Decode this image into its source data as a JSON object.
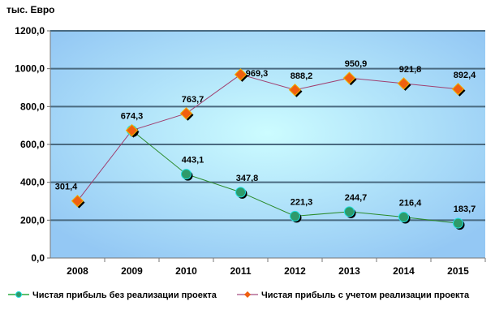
{
  "chart_data": {
    "type": "line",
    "title": "",
    "ylabel": "тыс. Евро",
    "xlabel": "",
    "ylim": [
      0,
      1200
    ],
    "yticks": [
      "0,0",
      "200,0",
      "400,0",
      "600,0",
      "800,0",
      "1000,0",
      "1200,0"
    ],
    "ytick_values": [
      0,
      200,
      400,
      600,
      800,
      1000,
      1200
    ],
    "categories": [
      "2008",
      "2009",
      "2010",
      "2011",
      "2012",
      "2013",
      "2014",
      "2015"
    ],
    "grid": true,
    "legend": "bottom",
    "series": [
      {
        "name": "Чистая прибыль без реализации проекта",
        "color": "#2e9a6a",
        "line": "#2a8a2a",
        "marker": "circle",
        "values": [
          null,
          674.3,
          443.1,
          347.8,
          221.3,
          244.7,
          216.4,
          183.7
        ],
        "labels": [
          null,
          "674,3",
          "443,1",
          "347,8",
          "221,3",
          "244,7",
          "216,4",
          "183,7"
        ]
      },
      {
        "name": "Чистая прибыль с учетом реализации проекта",
        "color": "#f06010",
        "line": "#a04070",
        "marker": "diamond",
        "values": [
          301.4,
          674.3,
          763.7,
          969.3,
          888.2,
          950.9,
          921.8,
          892.4
        ],
        "labels": [
          "301,4",
          null,
          "763,7",
          "969,3",
          "888,2",
          "950,9",
          "921,8",
          "892,4"
        ]
      }
    ]
  }
}
